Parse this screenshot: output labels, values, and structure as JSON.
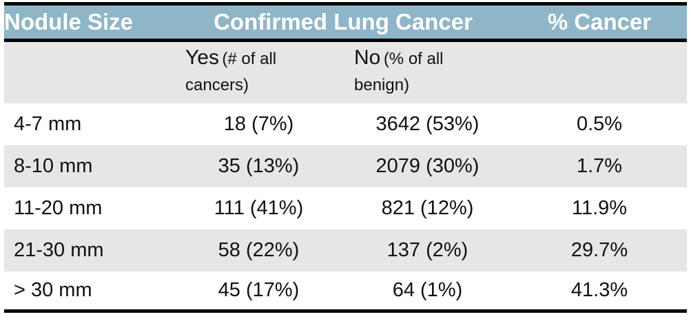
{
  "table": {
    "header": {
      "nodule_size": "Nodule Size",
      "confirmed_lung_cancer": "Confirmed Lung Cancer",
      "pct_cancer": "% Cancer"
    },
    "subheader": {
      "yes_label": "Yes",
      "yes_note": "(# of all cancers)",
      "no_label": "No",
      "no_note": "(% of all benign)"
    },
    "rows": [
      {
        "size": "4-7 mm",
        "yes": "18 (7%)",
        "no": "3642 (53%)",
        "pct": "0.5%"
      },
      {
        "size": "8-10 mm",
        "yes": "35 (13%)",
        "no": "2079 (30%)",
        "pct": "1.7%"
      },
      {
        "size": "11-20 mm",
        "yes": "111 (41%)",
        "no": "821 (12%)",
        "pct": "11.9%"
      },
      {
        "size": "21-30 mm",
        "yes": "58 (22%)",
        "no": "137 (2%)",
        "pct": "29.7%"
      },
      {
        "size": "> 30 mm",
        "yes": "45 (17%)",
        "no": "64 (1%)",
        "pct": "41.3%"
      }
    ],
    "colors": {
      "header_bg": "#8fb5c8",
      "header_text": "#ffffff",
      "stripe_bg": "#e6e6e6",
      "rule": "#000000",
      "body_text": "#111111"
    }
  },
  "chart_data": {
    "type": "table",
    "columns": [
      "Nodule Size",
      "Confirmed Lung Cancer — Yes (# of all cancers)",
      "Confirmed Lung Cancer — No (% of all benign)",
      "% Cancer"
    ],
    "column_groups": [
      {
        "label": "Confirmed Lung Cancer",
        "spans": [
          "Yes (# of all cancers)",
          "No (% of all benign)"
        ]
      }
    ],
    "categories": [
      "4-7 mm",
      "8-10 mm",
      "11-20 mm",
      "21-30 mm",
      "> 30 mm"
    ],
    "series": [
      {
        "name": "Yes count",
        "values": [
          18,
          35,
          111,
          58,
          45
        ]
      },
      {
        "name": "Yes % of all cancers",
        "values": [
          7,
          13,
          41,
          22,
          17
        ]
      },
      {
        "name": "No count",
        "values": [
          3642,
          2079,
          821,
          137,
          64
        ]
      },
      {
        "name": "No % of all benign",
        "values": [
          53,
          30,
          12,
          2,
          1
        ]
      },
      {
        "name": "% Cancer",
        "values": [
          0.5,
          1.7,
          11.9,
          29.7,
          41.3
        ]
      }
    ],
    "rows": [
      [
        "4-7 mm",
        "18 (7%)",
        "3642 (53%)",
        "0.5%"
      ],
      [
        "8-10 mm",
        "35 (13%)",
        "2079 (30%)",
        "1.7%"
      ],
      [
        "11-20 mm",
        "111 (41%)",
        "821 (12%)",
        "11.9%"
      ],
      [
        "21-30 mm",
        "58 (22%)",
        "137 (2%)",
        "29.7%"
      ],
      [
        "> 30 mm",
        "45 (17%)",
        "64 (1%)",
        "41.3%"
      ]
    ]
  }
}
